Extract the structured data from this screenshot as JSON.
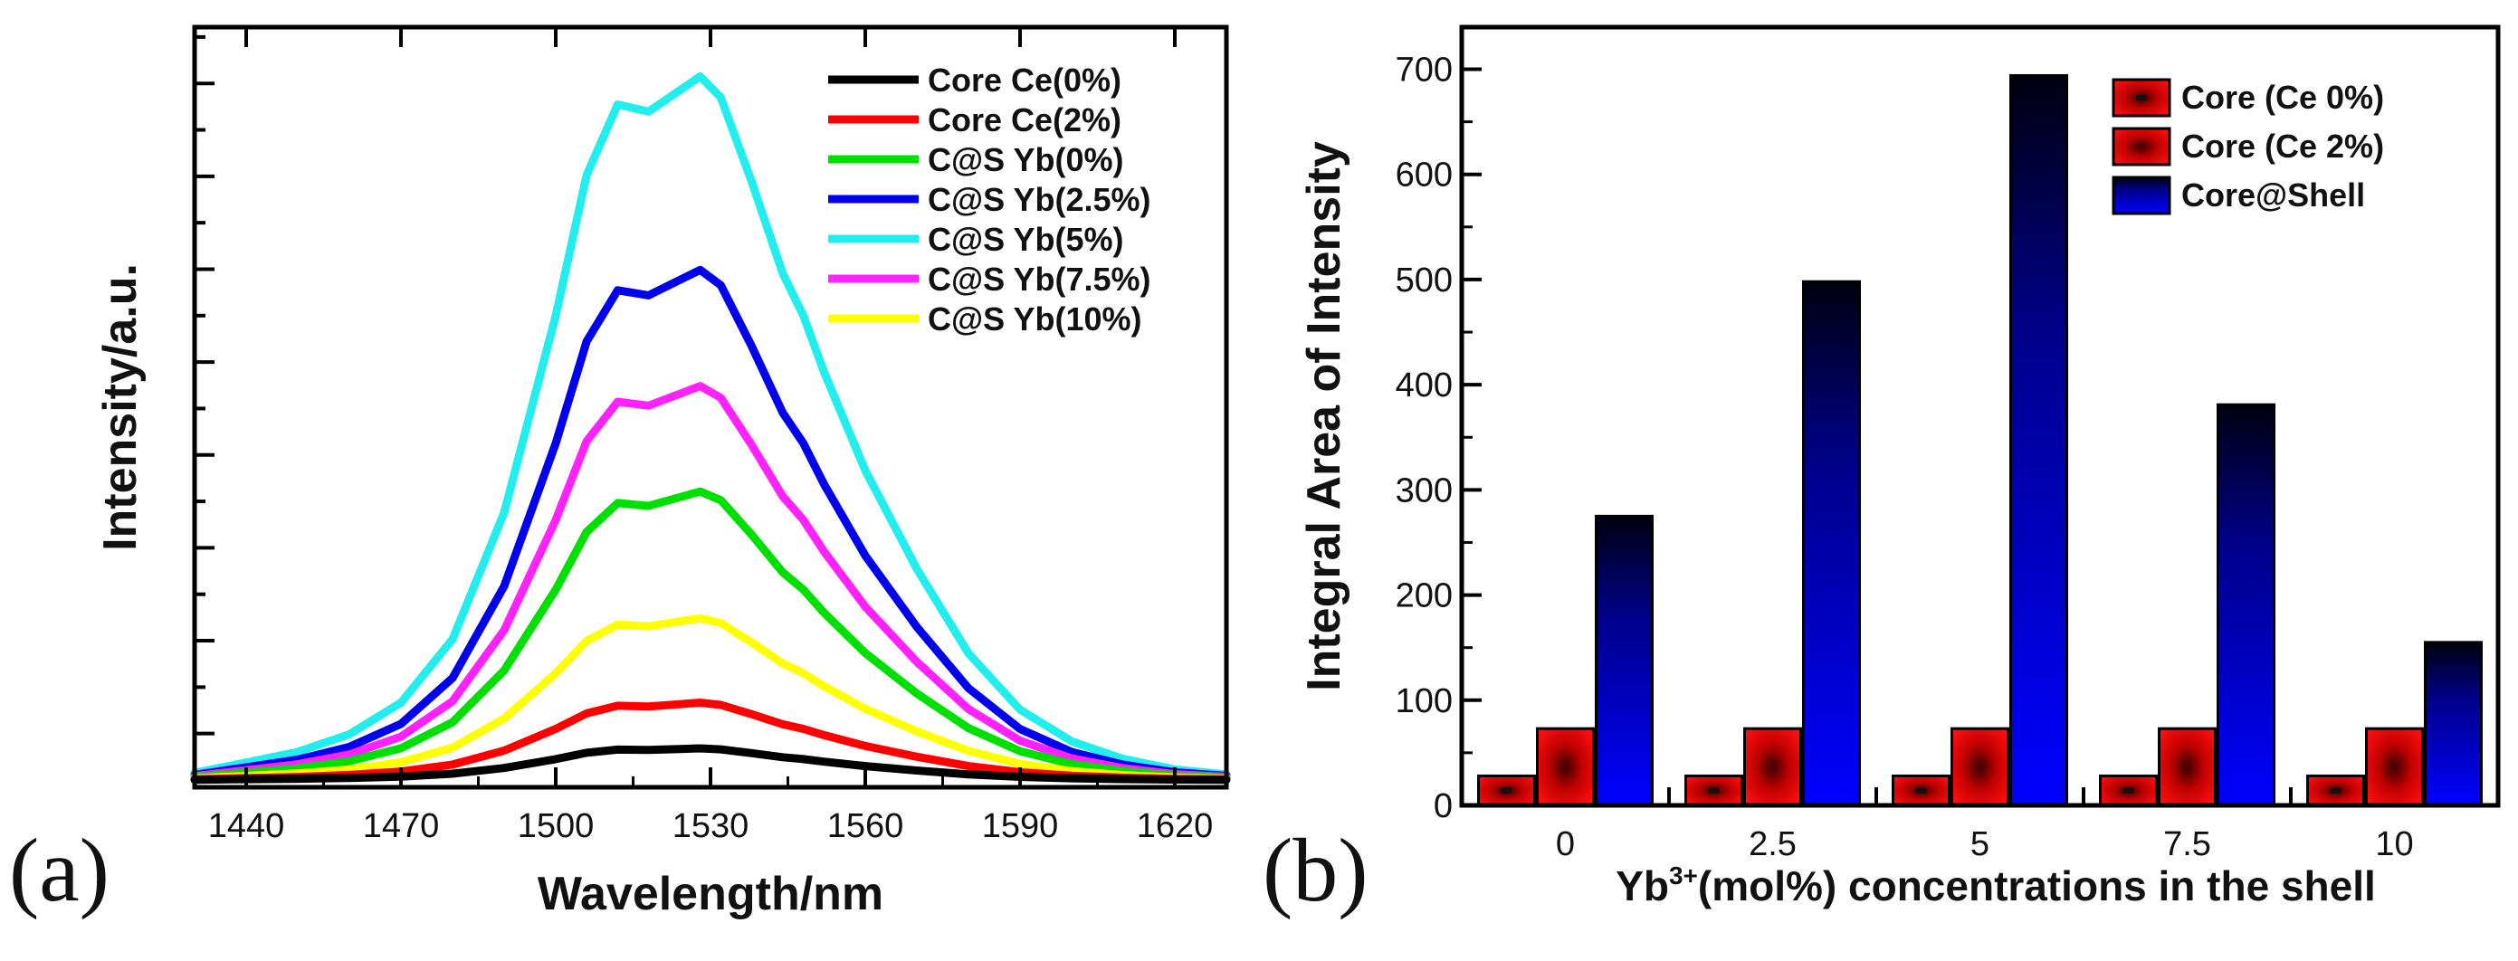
{
  "chart_data": [
    {
      "panel": "(a)",
      "type": "line",
      "xlabel": "Wavelength/nm",
      "ylabel": "Intensity/a.u.",
      "xlim": [
        1430,
        1630
      ],
      "ylim": [
        0,
        1.07
      ],
      "xticks": [
        1440,
        1470,
        1500,
        1530,
        1560,
        1590,
        1620
      ],
      "x": [
        1430,
        1440,
        1450,
        1460,
        1470,
        1480,
        1490,
        1500,
        1506,
        1512,
        1518,
        1524,
        1528,
        1532,
        1538,
        1544,
        1548,
        1552,
        1560,
        1570,
        1580,
        1590,
        1600,
        1610,
        1620,
        1630
      ],
      "shape": [
        0.01,
        0.025,
        0.04,
        0.065,
        0.11,
        0.2,
        0.38,
        0.66,
        0.86,
        0.96,
        0.95,
        0.98,
        1.0,
        0.97,
        0.85,
        0.72,
        0.66,
        0.58,
        0.44,
        0.3,
        0.18,
        0.1,
        0.055,
        0.03,
        0.015,
        0.008
      ],
      "series": [
        {
          "name": "Core Ce(0%)",
          "color": "#000000",
          "peak": 0.045
        },
        {
          "name": "Core Ce(2%)",
          "color": "#ff0000",
          "peak": 0.11
        },
        {
          "name": "C@S  Yb(0%)",
          "color": "#00e000",
          "peak": 0.41
        },
        {
          "name": "C@S  Yb(2.5%)",
          "color": "#0000ee",
          "peak": 0.725
        },
        {
          "name": "C@S  Yb(5%)",
          "color": "#22eeee",
          "peak": 1.0
        },
        {
          "name": "C@S  Yb(7.5%)",
          "color": "#ff22ff",
          "peak": 0.56
        },
        {
          "name": "C@S  Yb(10%)",
          "color": "#ffff00",
          "peak": 0.23
        }
      ],
      "legend_position": "top-right",
      "grid": false
    },
    {
      "panel": "(b)",
      "type": "bar",
      "xlabel_main": "Yb",
      "xlabel_sup": "3+",
      "xlabel_rest": "(mol%)  concentrations in the shell",
      "ylabel": "Integral Area of Intensity",
      "ylim": [
        0,
        740
      ],
      "yticks": [
        0,
        100,
        200,
        300,
        400,
        500,
        600,
        700
      ],
      "categories": [
        "0",
        "2.5",
        "5",
        "7.5",
        "10"
      ],
      "series": [
        {
          "name": "Core (Ce 0%)",
          "values": [
            28,
            28,
            28,
            28,
            28
          ],
          "style": "red-bar-dotted"
        },
        {
          "name": "Core (Ce 2%)",
          "values": [
            73,
            73,
            73,
            73,
            73
          ],
          "style": "red-bar"
        },
        {
          "name": "Core@Shell",
          "values": [
            275,
            498,
            694,
            381,
            155
          ],
          "style": "blue-gradient"
        }
      ],
      "legend_position": "top-right",
      "grid": false
    }
  ]
}
